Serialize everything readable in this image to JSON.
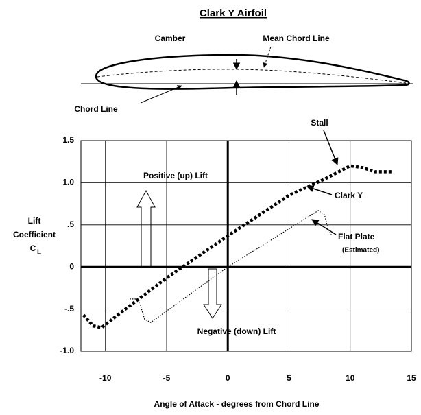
{
  "chart_data": {
    "type": "line",
    "title": "Clark Y Airfoil",
    "x_label": "Angle of Attack - degrees from Chord Line",
    "y_label": [
      "Lift",
      "Coefficient",
      "C",
      "L"
    ],
    "diagram_labels": {
      "camber": "Camber",
      "mean_chord_line": "Mean Chord Line",
      "chord_line": "Chord Line"
    },
    "annotations": {
      "positive": "Positive (up) Lift",
      "negative": "Negative (down) Lift",
      "stall": "Stall",
      "estimated": "(Estimated)"
    },
    "xlim": [
      -12,
      15
    ],
    "ylim": [
      -1,
      1.5
    ],
    "xticks": [
      -10,
      -5,
      0,
      5,
      10,
      15
    ],
    "yticks": [
      {
        "value": -1,
        "label": "-1.0"
      },
      {
        "value": -0.5,
        "label": "-.5"
      },
      0,
      {
        "value": 0.5,
        "label": ".5"
      },
      {
        "value": 1,
        "label": "1.0"
      },
      1.5
    ],
    "grid": true,
    "series": [
      {
        "name": "Clark Y",
        "color": "#000000",
        "x": [
          -11.8,
          -11,
          -10.3,
          -9,
          -5,
          0,
          5,
          8,
          10,
          11,
          12,
          13.5
        ],
        "values": [
          -0.57,
          -0.7,
          -0.72,
          -0.57,
          -0.13,
          0.37,
          0.85,
          1.05,
          1.2,
          1.18,
          1.13,
          1.13
        ]
      },
      {
        "name": "Flat Plate",
        "color": "#000000",
        "x": [
          -8,
          -7.3,
          -6.8,
          -6.3,
          0,
          7.4,
          7.9,
          8.2,
          8.5
        ],
        "values": [
          -0.38,
          -0.38,
          -0.62,
          -0.66,
          0,
          0.67,
          0.62,
          0.45,
          0.37
        ]
      }
    ]
  }
}
